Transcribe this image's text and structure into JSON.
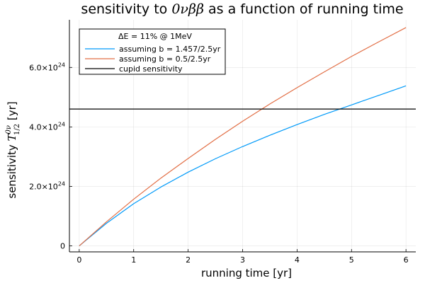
{
  "chart_data": {
    "type": "line",
    "title": {
      "prefix": "sensitivity to ",
      "math_main": "0νββ",
      "suffix": " as a function of running time"
    },
    "xlabel": "running time [yr]",
    "ylabel": {
      "prefix": "sensitivity ",
      "math_main": "T",
      "math_sup": "0ν",
      "math_sub": "1/2",
      "suffix": " [yr]"
    },
    "xlim": [
      -0.18,
      6.18
    ],
    "ylim": [
      -2e+23,
      7.6e+24
    ],
    "xticks": [
      {
        "value": 0,
        "label": "0"
      },
      {
        "value": 1,
        "label": "1"
      },
      {
        "value": 2,
        "label": "2"
      },
      {
        "value": 3,
        "label": "3"
      },
      {
        "value": 4,
        "label": "4"
      },
      {
        "value": 5,
        "label": "5"
      },
      {
        "value": 6,
        "label": "6"
      }
    ],
    "yticks": [
      {
        "value": 0,
        "mantissa": "0",
        "exponent": ""
      },
      {
        "value": 2e+24,
        "mantissa": "2.0×10",
        "exponent": "24"
      },
      {
        "value": 4e+24,
        "mantissa": "4.0×10",
        "exponent": "24"
      },
      {
        "value": 6e+24,
        "mantissa": "6.0×10",
        "exponent": "24"
      }
    ],
    "grid": true,
    "legend": {
      "placement": "top-left",
      "title": "ΔE = 11% @ 1MeV"
    },
    "series": [
      {
        "name": "assuming b = 1.457/2.5yr",
        "color": "#009af9",
        "x": [
          0,
          0.5,
          1,
          1.5,
          2,
          2.5,
          3,
          3.5,
          4,
          4.5,
          5,
          5.5,
          6
        ],
        "y": [
          0,
          7.6e+23,
          1.42e+24,
          1.98e+24,
          2.48e+24,
          2.93e+24,
          3.34e+24,
          3.72e+24,
          4.08e+24,
          4.42e+24,
          4.74e+24,
          5.06e+24,
          5.38e+24
        ]
      },
      {
        "name": "assuming b = 0.5/2.5yr",
        "color": "#e26f46",
        "x": [
          0,
          0.5,
          1,
          1.5,
          2,
          2.5,
          3,
          3.5,
          4,
          4.5,
          5,
          5.5,
          6
        ],
        "y": [
          0,
          8.1e+23,
          1.57e+24,
          2.28e+24,
          2.94e+24,
          3.58e+24,
          4.19e+24,
          4.77e+24,
          5.32e+24,
          5.85e+24,
          6.37e+24,
          6.86e+24,
          7.34e+24
        ]
      },
      {
        "name": "cupid sensitivity",
        "color": "#000000",
        "kind": "hline",
        "y": 4.6e+24
      }
    ]
  }
}
